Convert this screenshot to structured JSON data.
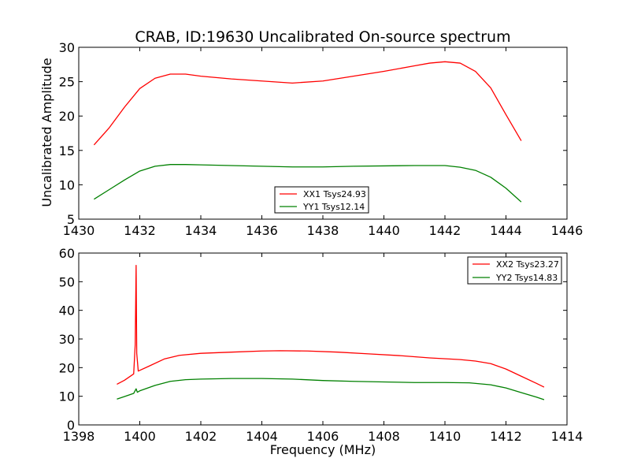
{
  "chart_data": [
    {
      "type": "line",
      "title": "CRAB, ID:19630 Uncalibrated On-source spectrum",
      "xlabel": "",
      "ylabel": "Uncalibrated Amplitude",
      "xlim": [
        1430,
        1446
      ],
      "ylim": [
        5,
        30
      ],
      "xticks": [
        1430,
        1432,
        1434,
        1436,
        1438,
        1440,
        1442,
        1444,
        1446
      ],
      "yticks": [
        5,
        10,
        15,
        20,
        25,
        30
      ],
      "legend": "lower-center",
      "series": [
        {
          "name": "XX1 Tsys24.93",
          "color": "#ff0000",
          "x": [
            1430.5,
            1431.0,
            1431.5,
            1432.0,
            1432.5,
            1433.0,
            1433.5,
            1434.0,
            1435.0,
            1436.0,
            1437.0,
            1438.0,
            1439.0,
            1440.0,
            1441.0,
            1441.5,
            1442.0,
            1442.5,
            1443.0,
            1443.5,
            1444.0,
            1444.5
          ],
          "y": [
            15.8,
            18.3,
            21.3,
            24.0,
            25.5,
            26.1,
            26.1,
            25.8,
            25.4,
            25.1,
            24.8,
            25.1,
            25.8,
            26.5,
            27.3,
            27.7,
            27.9,
            27.7,
            26.5,
            24.1,
            20.2,
            16.4
          ]
        },
        {
          "name": "YY1 Tsys12.14",
          "color": "#008000",
          "x": [
            1430.5,
            1431.0,
            1431.5,
            1432.0,
            1432.5,
            1433.0,
            1433.5,
            1434.0,
            1435.0,
            1436.0,
            1437.0,
            1438.0,
            1439.0,
            1440.0,
            1441.0,
            1441.5,
            1442.0,
            1442.5,
            1443.0,
            1443.5,
            1444.0,
            1444.5
          ],
          "y": [
            7.9,
            9.3,
            10.7,
            12.0,
            12.7,
            12.95,
            12.95,
            12.9,
            12.8,
            12.7,
            12.6,
            12.6,
            12.7,
            12.75,
            12.8,
            12.8,
            12.8,
            12.55,
            12.1,
            11.1,
            9.5,
            7.5
          ]
        }
      ]
    },
    {
      "type": "line",
      "title": "",
      "xlabel": "Frequency (MHz)",
      "ylabel": "",
      "xlim": [
        1398,
        1414
      ],
      "ylim": [
        0,
        60
      ],
      "xticks": [
        1398,
        1400,
        1402,
        1404,
        1406,
        1408,
        1410,
        1412,
        1414
      ],
      "yticks": [
        0,
        10,
        20,
        30,
        40,
        50,
        60
      ],
      "legend": "top-right",
      "series": [
        {
          "name": "XX2 Tsys23.27",
          "color": "#ff0000",
          "x": [
            1399.25,
            1399.5,
            1399.8,
            1399.85,
            1399.88,
            1399.9,
            1399.95,
            1400.3,
            1400.8,
            1401.3,
            1402.0,
            1403.0,
            1404.0,
            1404.6,
            1405.5,
            1406.5,
            1407.5,
            1408.5,
            1409.5,
            1410.5,
            1411.0,
            1411.5,
            1412.0,
            1412.5,
            1413.0,
            1413.25
          ],
          "y": [
            14.2,
            15.6,
            17.8,
            28.0,
            55.7,
            25.0,
            18.8,
            20.5,
            23.0,
            24.3,
            25.0,
            25.4,
            25.8,
            25.9,
            25.8,
            25.4,
            24.8,
            24.2,
            23.4,
            22.8,
            22.3,
            21.4,
            19.5,
            17.0,
            14.5,
            13.2
          ]
        },
        {
          "name": "YY2 Tsys14.83",
          "color": "#008000",
          "x": [
            1399.25,
            1399.5,
            1399.8,
            1399.88,
            1399.92,
            1400.0,
            1400.5,
            1401.0,
            1401.5,
            1402.0,
            1403.0,
            1404.0,
            1405.0,
            1406.0,
            1407.0,
            1408.0,
            1409.0,
            1410.0,
            1410.8,
            1411.5,
            1412.0,
            1412.5,
            1413.0,
            1413.25
          ],
          "y": [
            9.0,
            9.9,
            11.0,
            12.6,
            11.4,
            11.9,
            13.8,
            15.2,
            15.8,
            16.0,
            16.2,
            16.2,
            16.0,
            15.5,
            15.2,
            15.0,
            14.8,
            14.8,
            14.7,
            14.0,
            12.9,
            11.3,
            9.7,
            8.8
          ]
        }
      ]
    }
  ]
}
